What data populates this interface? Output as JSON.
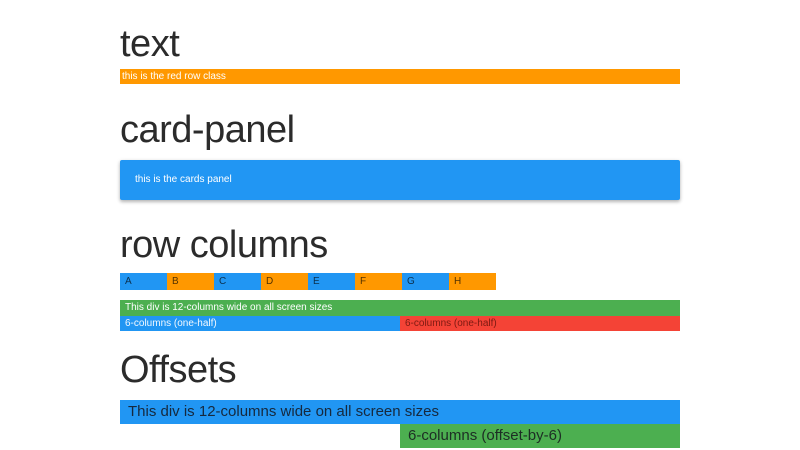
{
  "colors": {
    "orange": "#ff9800",
    "blue": "#2196f3",
    "green": "#4caf50",
    "red": "#f44336",
    "heading_text": "#2b2b2b",
    "page_background": "#ffffff"
  },
  "sections": {
    "text": {
      "title": "text",
      "red_row": {
        "label": "this is the red row class"
      }
    },
    "card_panel": {
      "title": "card-panel",
      "panel": {
        "label": "this is the cards panel"
      }
    },
    "row_columns": {
      "title": "row columns",
      "cols": [
        {
          "label": "A",
          "color": "blue"
        },
        {
          "label": "B",
          "color": "orange"
        },
        {
          "label": "C",
          "color": "blue"
        },
        {
          "label": "D",
          "color": "orange"
        },
        {
          "label": "E",
          "color": "blue"
        },
        {
          "label": "F",
          "color": "orange"
        },
        {
          "label": "G",
          "color": "blue"
        },
        {
          "label": "H",
          "color": "orange"
        }
      ],
      "full_row": {
        "label": "This div is 12-columns wide on all screen sizes"
      },
      "half_left": {
        "label": "6-columns (one-half)"
      },
      "half_right": {
        "label": "6-columns (one-half)"
      }
    },
    "offsets": {
      "title": "Offsets",
      "full_row": {
        "label": "This div is 12-columns wide on all screen sizes"
      },
      "offset_col": {
        "label": "6-columns (offset-by-6)"
      }
    }
  }
}
